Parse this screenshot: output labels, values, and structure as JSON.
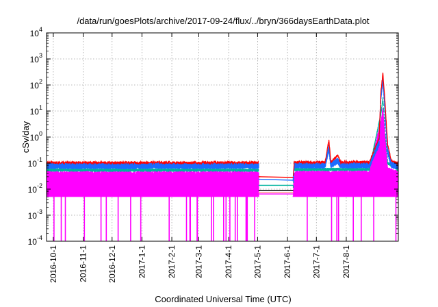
{
  "chart_data": {
    "type": "line",
    "title": "/data/run/goesPlots/archive/2017-09-24/flux/../bryn/366daysEarthData.plot",
    "xlabel": "Coordinated Universal Time (UTC)",
    "ylabel": "cSv/day",
    "y_scale": "log",
    "ylim": [
      0.0001,
      10000
    ],
    "y_ticks": [
      {
        "value": 0.0001,
        "base": "10",
        "exp": "-4"
      },
      {
        "value": 0.001,
        "base": "10",
        "exp": "-3"
      },
      {
        "value": 0.01,
        "base": "10",
        "exp": "-2"
      },
      {
        "value": 0.1,
        "base": "10",
        "exp": "-1"
      },
      {
        "value": 1,
        "base": "10",
        "exp": "0"
      },
      {
        "value": 10,
        "base": "10",
        "exp": "1"
      },
      {
        "value": 100,
        "base": "10",
        "exp": "2"
      },
      {
        "value": 1000,
        "base": "10",
        "exp": "3"
      },
      {
        "value": 10000,
        "base": "10",
        "exp": "4"
      }
    ],
    "xlim": [
      "2016-09-24",
      "2017-09-24"
    ],
    "x_ticks": [
      "2016-10-1",
      "2016-11-1",
      "2016-12-1",
      "2017-1-1",
      "2017-2-1",
      "2017-3-1",
      "2017-4-1",
      "2017-5-1",
      "2017-6-1",
      "2017-7-1",
      "2017-8-1"
    ],
    "grid": true,
    "legend": "none",
    "data_gap": [
      "2017-05-02",
      "2017-06-07"
    ],
    "series": [
      {
        "color": "#ff0000",
        "values": [
          [
            "2016-09-24",
            0.105
          ],
          [
            "2016-10-15",
            0.103
          ],
          [
            "2016-11-15",
            0.104
          ],
          [
            "2016-12-15",
            0.102
          ],
          [
            "2017-01-15",
            0.106
          ],
          [
            "2017-02-15",
            0.103
          ],
          [
            "2017-03-15",
            0.104
          ],
          [
            "2017-04-15",
            0.105
          ],
          [
            "2017-05-02",
            0.103
          ],
          [
            "2017-06-07",
            0.032
          ],
          [
            "2017-06-08",
            0.108
          ],
          [
            "2017-07-10",
            0.107
          ],
          [
            "2017-07-14",
            0.75
          ],
          [
            "2017-07-16",
            0.108
          ],
          [
            "2017-07-23",
            0.2
          ],
          [
            "2017-07-26",
            0.108
          ],
          [
            "2017-08-25",
            0.11
          ],
          [
            "2017-09-04",
            0.9
          ],
          [
            "2017-09-06",
            60
          ],
          [
            "2017-09-08",
            280
          ],
          [
            "2017-09-10",
            30
          ],
          [
            "2017-09-13",
            0.5
          ],
          [
            "2017-09-17",
            0.12
          ],
          [
            "2017-09-24",
            0.1
          ]
        ]
      },
      {
        "color": "#1a6cff",
        "values": [
          [
            "2016-09-24",
            0.085
          ],
          [
            "2016-10-15",
            0.084
          ],
          [
            "2016-11-15",
            0.085
          ],
          [
            "2016-12-15",
            0.083
          ],
          [
            "2017-01-15",
            0.086
          ],
          [
            "2017-02-15",
            0.084
          ],
          [
            "2017-03-15",
            0.085
          ],
          [
            "2017-04-15",
            0.086
          ],
          [
            "2017-05-02",
            0.084
          ],
          [
            "2017-06-07",
            0.025
          ],
          [
            "2017-06-08",
            0.088
          ],
          [
            "2017-07-10",
            0.087
          ],
          [
            "2017-07-14",
            0.4
          ],
          [
            "2017-07-16",
            0.088
          ],
          [
            "2017-07-23",
            0.13
          ],
          [
            "2017-07-26",
            0.088
          ],
          [
            "2017-08-25",
            0.09
          ],
          [
            "2017-09-04",
            0.6
          ],
          [
            "2017-09-06",
            40
          ],
          [
            "2017-09-08",
            180
          ],
          [
            "2017-09-10",
            15
          ],
          [
            "2017-09-13",
            0.3
          ],
          [
            "2017-09-17",
            0.09
          ],
          [
            "2017-09-24",
            0.08
          ]
        ]
      },
      {
        "color": "#00b39e",
        "values": [
          [
            "2016-09-24",
            0.055
          ],
          [
            "2016-12-15",
            0.054
          ],
          [
            "2017-03-15",
            0.055
          ],
          [
            "2017-05-02",
            0.054
          ],
          [
            "2017-06-07",
            0.013
          ],
          [
            "2017-06-08",
            0.057
          ],
          [
            "2017-08-25",
            0.058
          ],
          [
            "2017-09-06",
            8
          ],
          [
            "2017-09-08",
            30
          ],
          [
            "2017-09-10",
            3
          ],
          [
            "2017-09-13",
            0.1
          ],
          [
            "2017-09-24",
            0.055
          ]
        ]
      },
      {
        "color": "#ff00ff",
        "values": [
          [
            "2016-09-24",
            0.045
          ],
          [
            "2016-10-15",
            0.044
          ],
          [
            "2016-11-15",
            0.045
          ],
          [
            "2016-12-15",
            0.044
          ],
          [
            "2017-01-15",
            0.045
          ],
          [
            "2017-02-15",
            0.044
          ],
          [
            "2017-03-15",
            0.045
          ],
          [
            "2017-04-15",
            0.045
          ],
          [
            "2017-05-02",
            0.044
          ],
          [
            "2017-06-07",
            0.006
          ],
          [
            "2017-06-08",
            0.046
          ],
          [
            "2017-08-25",
            0.047
          ],
          [
            "2017-09-06",
            4
          ],
          [
            "2017-09-08",
            12
          ],
          [
            "2017-09-10",
            1.5
          ],
          [
            "2017-09-13",
            0.06
          ],
          [
            "2017-09-24",
            0.045
          ]
        ],
        "floor": 0.005
      }
    ],
    "gap_lines": [
      {
        "color": "#ff0000",
        "y": [
          0.03,
          0.028
        ]
      },
      {
        "color": "#1a6cff",
        "y": [
          0.024,
          0.022
        ]
      },
      {
        "color": "#00b39e",
        "y": [
          0.014,
          0.014
        ]
      },
      {
        "color": "#000000",
        "y": [
          0.009,
          0.009
        ]
      },
      {
        "color": "#ff9999",
        "y": [
          0.0075,
          0.0075
        ]
      },
      {
        "color": "#ff00ff",
        "y": [
          0.0065,
          0.0065
        ]
      }
    ]
  }
}
